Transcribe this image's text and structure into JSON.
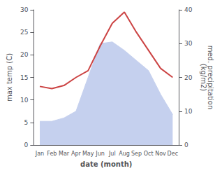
{
  "chart_data": {
    "type": "line",
    "xlabel": "date (month)",
    "ylabel": "max temp (C)",
    "y2label": "med. precipitation\n(kg/m2)",
    "categories": [
      "Jan",
      "Feb",
      "Mar",
      "Apr",
      "May",
      "Jun",
      "Jul",
      "Aug",
      "Sep",
      "Oct",
      "Nov",
      "Dec"
    ],
    "series": [
      {
        "type": "area",
        "axis": "y2",
        "color": "#c5d0ee",
        "values": [
          7.0,
          7.0,
          8.0,
          10.0,
          20.0,
          30.0,
          30.5,
          28.0,
          25.0,
          22.0,
          15.0,
          9.0
        ]
      },
      {
        "type": "line",
        "color": "#cc4444",
        "values": [
          13.0,
          12.5,
          13.2,
          15.0,
          16.5,
          22.0,
          27.0,
          29.5,
          25.0,
          21.0,
          17.0,
          15.0
        ]
      }
    ],
    "ylim": [
      0,
      30
    ],
    "yticks": [
      0,
      5,
      10,
      15,
      20,
      25,
      30
    ],
    "y2lim": [
      0,
      40
    ],
    "y2ticks": [
      0,
      10,
      20,
      30,
      40
    ],
    "grid": false
  }
}
